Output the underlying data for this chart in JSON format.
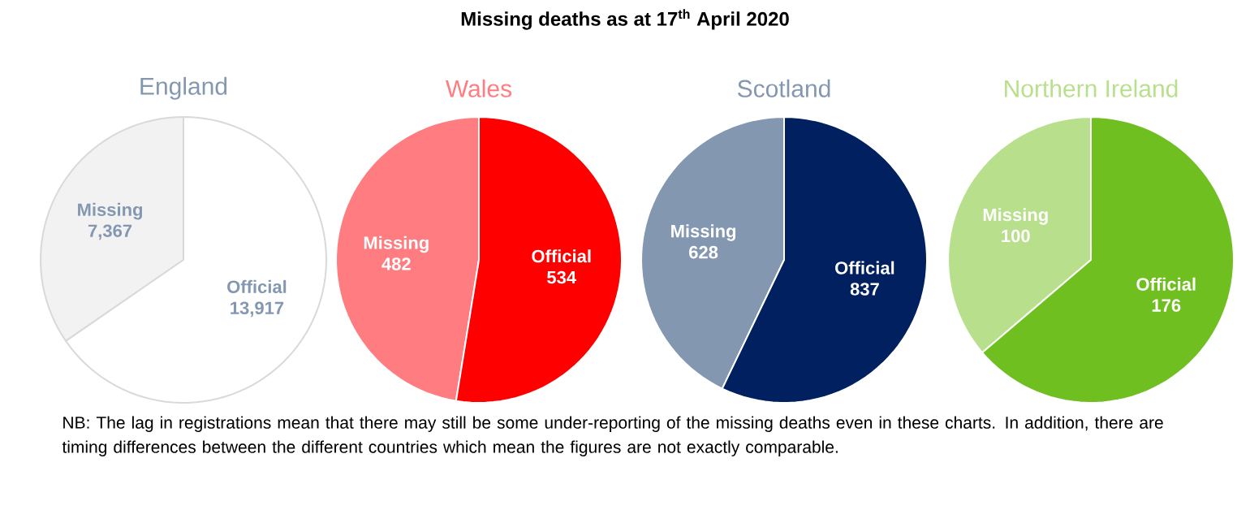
{
  "chart_data": [
    {
      "type": "other",
      "title": "Missing deaths as at 17$^{th}$ April 2020",
      "annotations": [
        "NB: The lag in registrations mean that there may still be some under-reporting of the missing deaths even in these charts. In addition, there are timing differences between the different countries which mean the figures are not exactly comparable."
      ]
    },
    {
      "type": "pie",
      "title": "England",
      "categories": [
        "Missing",
        "Official"
      ],
      "values": [
        7367,
        13917
      ],
      "value_labels": [
        "7,367",
        "13,917"
      ],
      "colors": [
        "#f2f2f2",
        "#ffffff"
      ]
    },
    {
      "type": "pie",
      "title": "Wales",
      "categories": [
        "Missing",
        "Official"
      ],
      "values": [
        482,
        534
      ],
      "value_labels": [
        "482",
        "534"
      ],
      "colors": [
        "#ff7c80",
        "#ff0000"
      ]
    },
    {
      "type": "pie",
      "title": "Scotland",
      "categories": [
        "Missing",
        "Official"
      ],
      "values": [
        628,
        837
      ],
      "value_labels": [
        "628",
        "837"
      ],
      "colors": [
        "#8497b0",
        "#002060"
      ]
    },
    {
      "type": "pie",
      "title": "Northern Ireland",
      "categories": [
        "Missing",
        "Official"
      ],
      "values": [
        100,
        176
      ],
      "value_labels": [
        "100",
        "176"
      ],
      "colors": [
        "#b8e08c",
        "#70bf20"
      ]
    }
  ]
}
